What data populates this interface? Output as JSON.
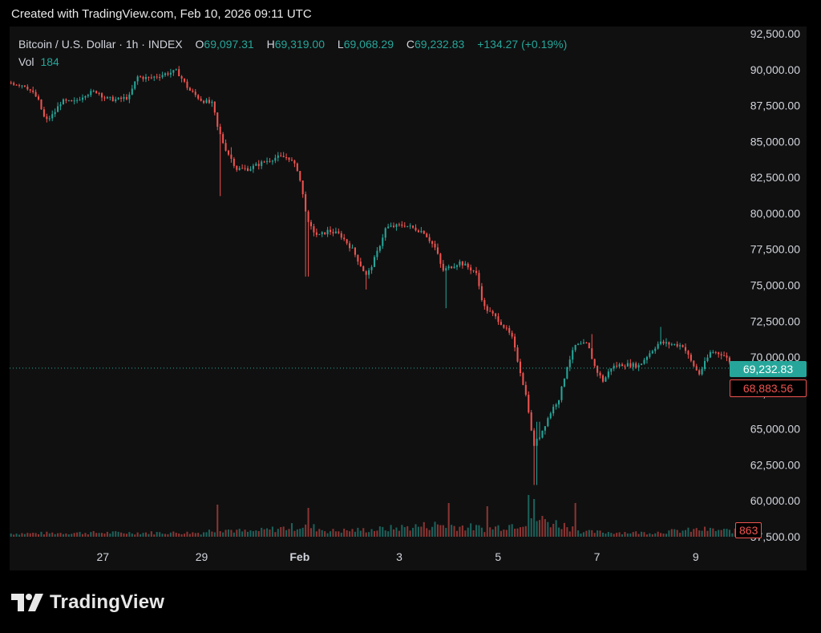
{
  "header": {
    "attribution": "Created with TradingView.com, Feb 10, 2026 09:11 UTC"
  },
  "legend": {
    "symbol": "Bitcoin / U.S. Dollar · 1h · INDEX",
    "open_label": "O",
    "open": "69,097.31",
    "high_label": "H",
    "high": "69,319.00",
    "low_label": "L",
    "low": "69,068.29",
    "close_label": "C",
    "close": "69,232.83",
    "change": "+134.27 (+0.19%)",
    "vol_label": "Vol",
    "vol": "184"
  },
  "badges": {
    "last_price": "69,232.83",
    "prev_price": "68,883.56",
    "volume": "863"
  },
  "colors": {
    "up": "#26a69a",
    "down": "#ef5350",
    "background": "#101010",
    "text": "#d1d4dc"
  },
  "footer": {
    "brand": "TradingView",
    "logo_icon": "tradingview-logo-icon"
  },
  "chart_data": {
    "type": "candlestick",
    "symbol": "BTC/USD",
    "interval": "1h",
    "ylim": [
      57500,
      92500
    ],
    "y_ticks": [
      "92,500.00",
      "90,000.00",
      "87,500.00",
      "85,000.00",
      "82,500.00",
      "80,000.00",
      "77,500.00",
      "75,000.00",
      "72,500.00",
      "70,000.00",
      "67,500.00",
      "65,000.00",
      "62,500.00",
      "60,000.00",
      "57,500.00"
    ],
    "x_ticks": [
      {
        "label": "27",
        "at": 0.117
      },
      {
        "label": "29",
        "at": 0.241
      },
      {
        "label": "Feb",
        "at": 0.364,
        "bold": true
      },
      {
        "label": "3",
        "at": 0.489
      },
      {
        "label": "5",
        "at": 0.613
      },
      {
        "label": "7",
        "at": 0.737
      },
      {
        "label": "9",
        "at": 0.861
      }
    ],
    "price_path": [
      [
        0.0,
        89100
      ],
      [
        0.02,
        88900
      ],
      [
        0.035,
        88000
      ],
      [
        0.045,
        86400
      ],
      [
        0.055,
        86900
      ],
      [
        0.065,
        87800
      ],
      [
        0.08,
        87700
      ],
      [
        0.095,
        88300
      ],
      [
        0.11,
        88500
      ],
      [
        0.12,
        88000
      ],
      [
        0.135,
        87900
      ],
      [
        0.15,
        88100
      ],
      [
        0.16,
        89500
      ],
      [
        0.175,
        89400
      ],
      [
        0.195,
        89700
      ],
      [
        0.21,
        89900
      ],
      [
        0.225,
        88600
      ],
      [
        0.24,
        87900
      ],
      [
        0.255,
        87600
      ],
      [
        0.26,
        86100
      ],
      [
        0.27,
        84600
      ],
      [
        0.285,
        83100
      ],
      [
        0.3,
        83100
      ],
      [
        0.32,
        83600
      ],
      [
        0.335,
        83900
      ],
      [
        0.35,
        83900
      ],
      [
        0.362,
        83000
      ],
      [
        0.375,
        79200
      ],
      [
        0.387,
        78400
      ],
      [
        0.4,
        78800
      ],
      [
        0.415,
        78500
      ],
      [
        0.43,
        77500
      ],
      [
        0.448,
        75600
      ],
      [
        0.46,
        77100
      ],
      [
        0.472,
        79000
      ],
      [
        0.495,
        79200
      ],
      [
        0.52,
        78700
      ],
      [
        0.535,
        77500
      ],
      [
        0.543,
        76000
      ],
      [
        0.55,
        76200
      ],
      [
        0.565,
        76600
      ],
      [
        0.585,
        75900
      ],
      [
        0.595,
        73500
      ],
      [
        0.615,
        72500
      ],
      [
        0.63,
        71400
      ],
      [
        0.64,
        69200
      ],
      [
        0.65,
        66800
      ],
      [
        0.657,
        63800
      ],
      [
        0.665,
        64500
      ],
      [
        0.68,
        66300
      ],
      [
        0.69,
        67200
      ],
      [
        0.7,
        69500
      ],
      [
        0.71,
        70800
      ],
      [
        0.725,
        70900
      ],
      [
        0.735,
        69200
      ],
      [
        0.745,
        68300
      ],
      [
        0.755,
        69300
      ],
      [
        0.77,
        69500
      ],
      [
        0.79,
        69400
      ],
      [
        0.8,
        70100
      ],
      [
        0.815,
        71000
      ],
      [
        0.83,
        70900
      ],
      [
        0.845,
        70800
      ],
      [
        0.855,
        69700
      ],
      [
        0.865,
        68800
      ],
      [
        0.88,
        70400
      ],
      [
        0.895,
        70200
      ],
      [
        0.905,
        69600
      ],
      [
        0.912,
        69233
      ]
    ],
    "spikes": [
      {
        "at": 0.265,
        "low": 81200
      },
      {
        "at": 0.278,
        "high": 84600
      },
      {
        "at": 0.373,
        "low": 75600
      },
      {
        "at": 0.447,
        "low": 74700
      },
      {
        "at": 0.547,
        "low": 73400
      },
      {
        "at": 0.66,
        "low": 61100
      },
      {
        "at": 0.663,
        "high": 65500
      },
      {
        "at": 0.732,
        "high": 71600
      },
      {
        "at": 0.817,
        "high": 72100
      }
    ],
    "volume_path": [
      [
        0.0,
        4
      ],
      [
        0.1,
        5
      ],
      [
        0.24,
        5
      ],
      [
        0.262,
        10
      ],
      [
        0.3,
        6
      ],
      [
        0.372,
        14
      ],
      [
        0.4,
        7
      ],
      [
        0.46,
        9
      ],
      [
        0.54,
        15
      ],
      [
        0.6,
        10
      ],
      [
        0.64,
        17
      ],
      [
        0.655,
        24
      ],
      [
        0.7,
        13
      ],
      [
        0.72,
        6
      ],
      [
        0.8,
        5
      ],
      [
        0.87,
        9
      ],
      [
        0.912,
        7
      ]
    ],
    "volume_spikes": [
      {
        "at": 0.262,
        "h": 40
      },
      {
        "at": 0.374,
        "h": 36
      },
      {
        "at": 0.55,
        "h": 42
      },
      {
        "at": 0.6,
        "h": 38
      },
      {
        "at": 0.652,
        "h": 52
      },
      {
        "at": 0.657,
        "h": 47
      },
      {
        "at": 0.71,
        "h": 42
      }
    ],
    "last_price": 69232.83
  }
}
